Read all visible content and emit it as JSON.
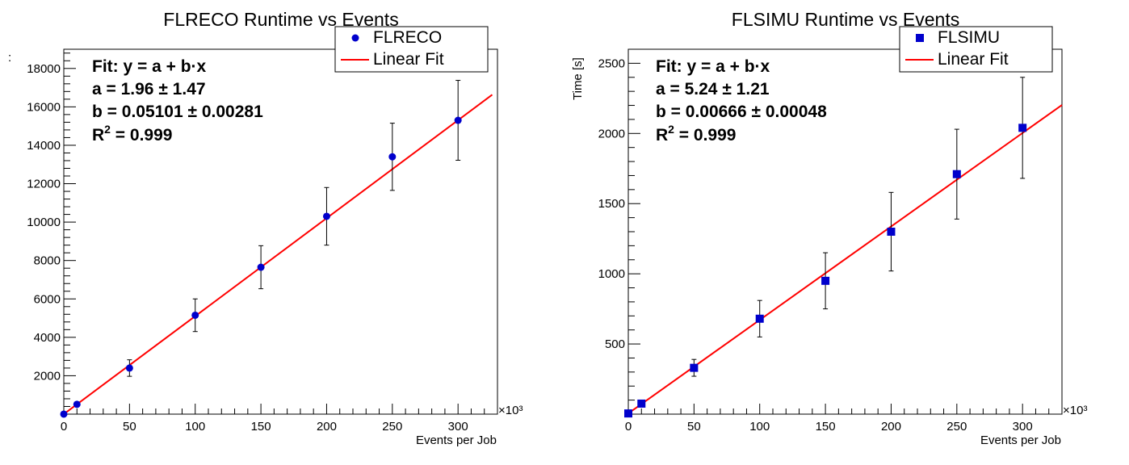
{
  "charts": [
    {
      "title": "FLRECO Runtime vs Events",
      "ylabel_fragment": ":",
      "chart_data": {
        "type": "scatter",
        "title": "FLRECO Runtime vs Events",
        "xlabel": "Events per Job",
        "x_multiplier_label": "×10³",
        "xlim": [
          0,
          330
        ],
        "ylim": [
          0,
          19000
        ],
        "x_ticks": [
          0,
          50,
          100,
          150,
          200,
          250,
          300
        ],
        "y_ticks": [
          2000,
          4000,
          6000,
          8000,
          10000,
          12000,
          14000,
          16000,
          18000
        ],
        "grid": false,
        "legend_position": "top-right",
        "marker": "circle",
        "marker_color": "#0000cc",
        "fit_color": "#ff0000",
        "series": [
          {
            "name": "FLRECO",
            "x": [
              0,
              10,
              50,
              100,
              150,
              200,
              250,
              300
            ],
            "y": [
              2,
              510,
              2400,
              5150,
              7650,
              10300,
              13400,
              15300
            ],
            "yerr": [
              0,
              50,
              430,
              850,
              1120,
              1500,
              1750,
              2080
            ]
          }
        ],
        "fit": {
          "name": "Linear Fit",
          "a": 1.96,
          "b": 0.05101,
          "x_range": [
            0,
            326
          ]
        }
      },
      "stats": {
        "line1": "Fit: y = a + b·x",
        "line2": "a = 1.96 ± 1.47",
        "line3": "b = 0.05101 ± 0.00281",
        "r2_label": "R",
        "r2_sup": "2",
        "r2_value": " = 0.999"
      },
      "legend": {
        "series_label": "FLRECO",
        "fit_label": "Linear Fit"
      }
    },
    {
      "title": "FLSIMU Runtime vs Events",
      "ylabel_fragment": "Time [s]",
      "chart_data": {
        "type": "scatter",
        "title": "FLSIMU Runtime vs Events",
        "xlabel": "Events per Job",
        "ylabel": "Time [s]",
        "x_multiplier_label": "×10³",
        "xlim": [
          0,
          330
        ],
        "ylim": [
          0,
          2600
        ],
        "x_ticks": [
          0,
          50,
          100,
          150,
          200,
          250,
          300
        ],
        "y_ticks": [
          500,
          1000,
          1500,
          2000,
          2500
        ],
        "grid": false,
        "legend_position": "top-right",
        "marker": "square",
        "marker_color": "#0000cc",
        "fit_color": "#ff0000",
        "series": [
          {
            "name": "FLSIMU",
            "x": [
              0,
              10,
              50,
              100,
              150,
              200,
              250,
              300
            ],
            "y": [
              5,
              75,
              330,
              680,
              950,
              1300,
              1710,
              2040
            ],
            "yerr": [
              0,
              8,
              60,
              130,
              200,
              280,
              320,
              360
            ]
          }
        ],
        "fit": {
          "name": "Linear Fit",
          "a": 5.24,
          "b": 0.00666,
          "x_range": [
            0,
            330
          ]
        }
      },
      "stats": {
        "line1": "Fit: y = a + b·x",
        "line2": "a = 5.24 ± 1.21",
        "line3": "b = 0.00666 ± 0.00048",
        "r2_label": "R",
        "r2_sup": "2",
        "r2_value": " = 0.999"
      },
      "legend": {
        "series_label": "FLSIMU",
        "fit_label": "Linear Fit"
      }
    }
  ]
}
